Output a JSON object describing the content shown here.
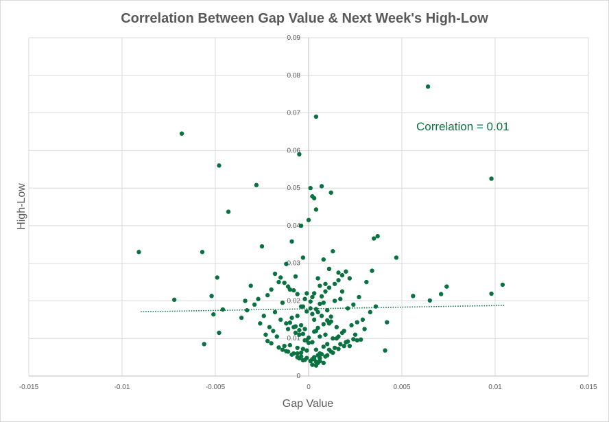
{
  "chart_data": {
    "type": "scatter",
    "title": "Correlation Between Gap Value & Next Week's High-Low",
    "xlabel": "Gap Value",
    "ylabel": "High-Low",
    "xlim": [
      -0.015,
      0.015
    ],
    "ylim": [
      0,
      0.09
    ],
    "x_ticks": [
      -0.015,
      -0.01,
      -0.005,
      0,
      0.005,
      0.01,
      0.015
    ],
    "x_tick_labels": [
      "-0.015",
      "-0.01",
      "-0.005",
      "0",
      "0.005",
      "0.01",
      "0.015"
    ],
    "y_ticks": [
      0,
      0.01,
      0.02,
      0.03,
      0.04,
      0.05,
      0.06,
      0.07,
      0.08,
      0.09
    ],
    "y_tick_labels": [
      "0",
      "0.01",
      "0.02",
      "0.03",
      "0.04",
      "0.05",
      "0.06",
      "0.07",
      "0.08",
      "0.09"
    ],
    "grid": true,
    "annotation": "Correlation = 0.01",
    "trendline": {
      "type": "linear",
      "style": "dotted",
      "x": [
        -0.009,
        0.0105
      ],
      "y": [
        0.0171,
        0.0188
      ]
    },
    "colors": {
      "points": "#0a7240",
      "trendline": "#0a7240",
      "annotation": "#0a7240",
      "grid": "#d9d9d9",
      "text": "#595959"
    },
    "series": [
      {
        "x": [
          0.0064,
          -0.0068,
          0.0004,
          -0.0005,
          0.0098,
          -0.0048,
          -0.0028,
          0.0007,
          0.0001,
          0.0003,
          0.0012,
          0.0002,
          0.0004,
          -0.0043,
          -0.0004,
          0.0,
          -0.0091,
          -0.0057,
          0.0104,
          0.0098,
          0.0074,
          0.0071,
          0.0065,
          0.0056,
          0.0047,
          0.0037,
          0.0035,
          -0.0049,
          -0.0052,
          -0.0072,
          -0.0046,
          -0.0051,
          -0.0056,
          -0.0048,
          0.0042,
          0.0041,
          -0.0036,
          0.0028,
          0.0026,
          -0.0016,
          -0.0009,
          0.0013,
          -0.0025,
          0.0008,
          -0.0012,
          0.0022,
          0.0016,
          0.0031,
          -0.0031,
          -0.002,
          0.0011,
          -0.0003,
          0.0034,
          -0.0027,
          0.0018,
          -0.0007,
          0.0006,
          0.0027,
          -0.0022,
          0.0003,
          -0.0014,
          0.0009,
          0.0017,
          -0.001,
          0.0021,
          -0.0033,
          0.0005,
          -0.0018,
          0.0024,
          0.0014,
          -0.0003,
          0.0002,
          -0.0006,
          0.001,
          0.0008,
          -0.0001,
          0.0003,
          0.0005,
          -0.0009,
          0.0012,
          -0.0004,
          0.0007,
          -0.0012,
          0.0015,
          -0.0002,
          0.0001,
          0.0004,
          -0.0007,
          0.0011,
          -0.0015,
          0.0019,
          -0.0005,
          0.0006,
          -0.0011,
          0.0013,
          -0.0001,
          0.0009,
          0.0002,
          -0.0008,
          0.0016,
          -0.0024,
          0.0023,
          -0.0019,
          0.0025,
          0.0029,
          -0.0029,
          0.0033,
          -0.0034,
          0.003,
          -0.0026,
          0.0036,
          0.002,
          -0.0013,
          0.001,
          -0.0006,
          0.0004,
          0.0008,
          -0.0003,
          0.0012,
          -0.001,
          0.0006,
          -0.0002,
          0.0,
          0.0015,
          -0.0017,
          0.0018,
          -0.0021,
          0.0022,
          0.0026,
          -0.0023,
          0.0005,
          0.0003,
          -0.0004,
          0.0007,
          -0.0001,
          0.0002,
          0.0009,
          -0.0005,
          0.0011,
          -0.0008,
          0.0014,
          -0.0011,
          0.0017,
          -0.0014,
          0.0001,
          0.0004,
          -0.0002,
          0.0006,
          0.001,
          -0.0006,
          0.0013,
          -0.0009,
          0.0016,
          -0.0012,
          0.0019,
          -0.0016,
          0.0021,
          -0.002,
          0.0024,
          -0.0022,
          0.0,
          0.0003,
          -0.0003,
          0.0005,
          -0.0005,
          0.0008,
          -0.0007,
          0.001,
          -0.001,
          0.0012,
          0.0002,
          -0.0001,
          0.0004,
          -0.0004,
          0.0006,
          0.0001,
          -0.0002,
          0.0007,
          0.0009,
          -0.0006,
          0.0011,
          -0.0008,
          0.0014,
          -0.0011,
          0.0016,
          -0.0013,
          0.0018,
          -0.0015,
          0.002,
          -0.0018,
          0.0003,
          -0.0003,
          0.0005,
          -0.0001,
          0.0002,
          0.0006,
          -0.0004,
          0.0008,
          -0.0006,
          0.0004
        ],
        "y": [
          0.077,
          0.0645,
          0.069,
          0.059,
          0.0525,
          0.056,
          0.0508,
          0.0505,
          0.05,
          0.0473,
          0.0488,
          0.0478,
          0.0443,
          0.0437,
          0.04,
          0.0415,
          0.033,
          0.033,
          0.0243,
          0.0219,
          0.0238,
          0.0218,
          0.0201,
          0.0213,
          0.0315,
          0.0372,
          0.0366,
          0.0262,
          0.0213,
          0.0203,
          0.0177,
          0.0164,
          0.0085,
          0.0115,
          0.0143,
          0.0068,
          0.0155,
          0.0097,
          0.0143,
          0.025,
          0.0358,
          0.0332,
          0.0345,
          0.031,
          0.0298,
          0.026,
          0.0275,
          0.025,
          0.024,
          0.023,
          0.0285,
          0.0315,
          0.028,
          0.0205,
          0.0225,
          0.0265,
          0.024,
          0.021,
          0.0215,
          0.022,
          0.0195,
          0.0245,
          0.0205,
          0.023,
          0.018,
          0.0175,
          0.026,
          0.017,
          0.019,
          0.02,
          0.0185,
          0.021,
          0.016,
          0.0175,
          0.0195,
          0.022,
          0.015,
          0.017,
          0.0155,
          0.0145,
          0.0135,
          0.016,
          0.014,
          0.013,
          0.0125,
          0.018,
          0.012,
          0.0115,
          0.014,
          0.015,
          0.012,
          0.011,
          0.0105,
          0.0125,
          0.01,
          0.0095,
          0.011,
          0.009,
          0.013,
          0.0105,
          0.016,
          0.0135,
          0.012,
          0.011,
          0.015,
          0.019,
          0.017,
          0.02,
          0.0125,
          0.014,
          0.0185,
          0.009,
          0.008,
          0.0085,
          0.0075,
          0.007,
          0.0078,
          0.0072,
          0.0065,
          0.0082,
          0.006,
          0.0095,
          0.0088,
          0.01,
          0.0105,
          0.0115,
          0.013,
          0.008,
          0.0095,
          0.011,
          0.0055,
          0.005,
          0.0062,
          0.0058,
          0.0068,
          0.0045,
          0.0052,
          0.0047,
          0.007,
          0.006,
          0.0075,
          0.0065,
          0.0085,
          0.007,
          0.004,
          0.0038,
          0.0043,
          0.0048,
          0.0055,
          0.005,
          0.0062,
          0.0057,
          0.0072,
          0.0066,
          0.008,
          0.0076,
          0.0092,
          0.0087,
          0.0098,
          0.0093,
          0.0102,
          0.0118,
          0.0112,
          0.0128,
          0.0122,
          0.0138,
          0.0132,
          0.0148,
          0.0142,
          0.0158,
          0.0165,
          0.0172,
          0.0178,
          0.0185,
          0.0192,
          0.0198,
          0.0205,
          0.0212,
          0.0225,
          0.0218,
          0.0235,
          0.0228,
          0.0245,
          0.0238,
          0.0255,
          0.0248,
          0.0268,
          0.0262,
          0.0278,
          0.0272,
          0.0045,
          0.0042,
          0.0035,
          0.0048,
          0.003,
          0.004,
          0.0052,
          0.0035,
          0.006,
          0.0028
        ]
      }
    ]
  }
}
